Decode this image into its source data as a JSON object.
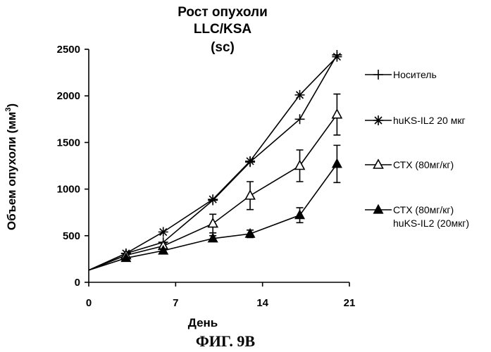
{
  "chart_data": {
    "type": "line",
    "title_lines": [
      "Рост опухоли",
      "LLC/KSA",
      "(sc)"
    ],
    "xlabel": "День",
    "ylabel": "Объем опухоли (мм",
    "ylabel_superscript": "3",
    "ylabel_suffix": ")",
    "xlim": [
      0,
      21
    ],
    "ylim": [
      0,
      2500
    ],
    "xticks": [
      0,
      7,
      14,
      21
    ],
    "yticks": [
      0,
      500,
      1000,
      1500,
      2000,
      2500
    ],
    "x": [
      0,
      3,
      6,
      10,
      13,
      17,
      20
    ],
    "series": [
      {
        "name": "Носитель",
        "marker": "plus",
        "values": [
          130,
          310,
          430,
          880,
          1290,
          1750,
          2440
        ],
        "errors": [
          0,
          0,
          0,
          0,
          0,
          0,
          0
        ]
      },
      {
        "name": "huKS-IL2 20 мкг",
        "marker": "star",
        "values": [
          130,
          310,
          540,
          890,
          1300,
          2010,
          2420
        ],
        "errors": [
          0,
          0,
          0,
          0,
          0,
          0,
          0
        ]
      },
      {
        "name": "СТХ (80мг/кг)",
        "marker": "open-triangle",
        "values": [
          130,
          290,
          390,
          630,
          930,
          1250,
          1800
        ],
        "errors": [
          0,
          0,
          30,
          100,
          150,
          170,
          220
        ]
      },
      {
        "name": "СТХ (80мг/кг) huKS-IL2 (20мкг)",
        "name_lines": [
          "СТХ (80мг/кг)",
          "huKS-IL2 (20мкг)"
        ],
        "marker": "filled-triangle",
        "values": [
          130,
          260,
          340,
          470,
          520,
          720,
          1270
        ],
        "errors": [
          0,
          0,
          20,
          30,
          40,
          80,
          200
        ]
      }
    ]
  },
  "caption": "ФИГ. 9В"
}
